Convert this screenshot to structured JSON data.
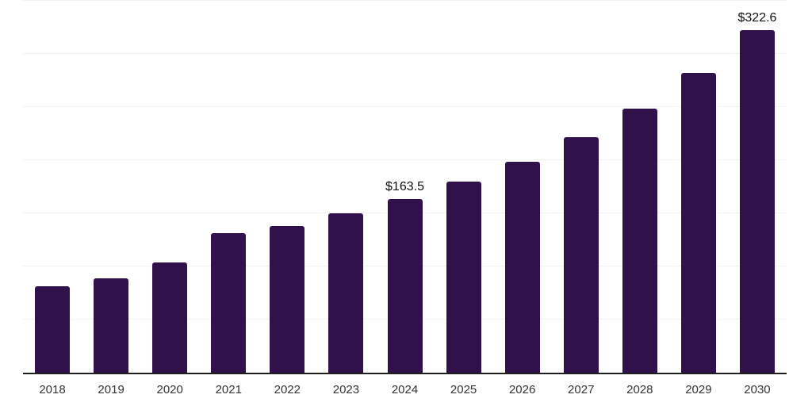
{
  "chart_data": {
    "type": "bar",
    "title": "",
    "categories": [
      "2018",
      "2019",
      "2020",
      "2021",
      "2022",
      "2023",
      "2024",
      "2025",
      "2026",
      "2027",
      "2028",
      "2029",
      "2030"
    ],
    "values": [
      81.0,
      88.9,
      104.0,
      131.4,
      138.4,
      150.0,
      163.5,
      179.6,
      198.7,
      221.6,
      248.8,
      282.0,
      322.6
    ],
    "value_labels": {
      "2024": "$163.5",
      "2030": "$322.6"
    },
    "xlabel": "",
    "ylabel": "",
    "ylim": [
      0,
      350
    ],
    "gridline_step": 50,
    "grid": "horizontal",
    "y_axis_ticks_visible": false,
    "legend_position": "none",
    "colors": {
      "bar_fill": "#31114C",
      "gridline": "#f2f2f2",
      "axis_line": "#1f1f1f",
      "tick_label": "#333333",
      "value_label": "#111111",
      "background": "#ffffff"
    }
  }
}
